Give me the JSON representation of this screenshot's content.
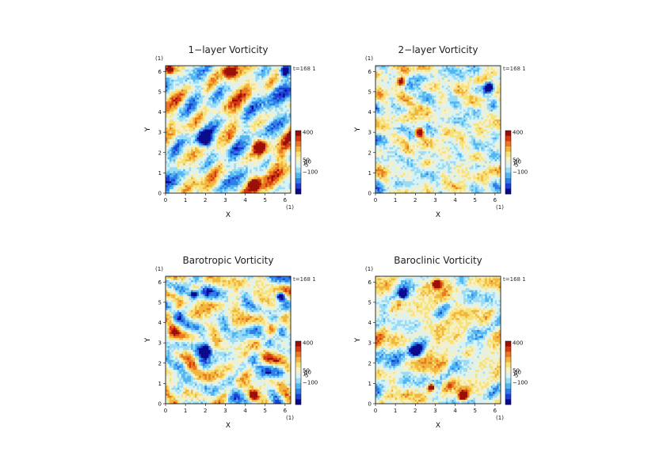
{
  "colors": {
    "palette": [
      "#0a0a8c",
      "#1e3fd6",
      "#2f7fe8",
      "#52b6f2",
      "#9adcf5",
      "#d8f2f6",
      "#f5f0c8",
      "#f7e27a",
      "#f2b63c",
      "#ea7a22",
      "#d63a12",
      "#9c0f08"
    ],
    "axis": "#000000"
  },
  "chart_data": [
    {
      "type": "heatmap",
      "title": "1−layer Vorticity",
      "xlabel": "X",
      "ylabel": "Y",
      "x_unit": "(1)",
      "y_unit": "(1)",
      "time_label": "t=168 1",
      "xlim": [
        0,
        6.283
      ],
      "ylim": [
        0,
        6.283
      ],
      "x_ticks": [
        0,
        1,
        2,
        3,
        4,
        5,
        6
      ],
      "y_ticks": [
        0,
        1,
        2,
        3,
        4,
        5,
        6
      ],
      "colorbar_labels": [
        "400",
        "50",
        "10",
        "1",
        "5",
        "−100"
      ],
      "seed": 11,
      "vortices": [
        {
          "x": 2.0,
          "y": 2.65,
          "r": 0.35,
          "sign": -1
        },
        {
          "x": 4.5,
          "y": 0.4,
          "r": 0.25,
          "sign": 1
        },
        {
          "x": 4.7,
          "y": 2.3,
          "r": 0.3,
          "sign": 1
        },
        {
          "x": 3.2,
          "y": 6.0,
          "r": 0.28,
          "sign": 1
        },
        {
          "x": 0.2,
          "y": 6.1,
          "r": 0.2,
          "sign": 1
        },
        {
          "x": 6.0,
          "y": 6.0,
          "r": 0.2,
          "sign": -1
        }
      ]
    },
    {
      "type": "heatmap",
      "title": "2−layer Vorticity",
      "xlabel": "X",
      "ylabel": "Y",
      "x_unit": "(1)",
      "y_unit": "(1)",
      "time_label": "t=168 1",
      "xlim": [
        0,
        6.283
      ],
      "ylim": [
        0,
        6.283
      ],
      "x_ticks": [
        0,
        1,
        2,
        3,
        4,
        5,
        6
      ],
      "y_ticks": [
        0,
        1,
        2,
        3,
        4,
        5,
        6
      ],
      "colorbar_labels": [
        "400",
        "50",
        "10",
        "1",
        "5",
        "−100"
      ],
      "seed": 23,
      "vortices": [
        {
          "x": 5.7,
          "y": 5.2,
          "r": 0.25,
          "sign": -1
        },
        {
          "x": 1.3,
          "y": 5.5,
          "r": 0.2,
          "sign": 1
        },
        {
          "x": 2.2,
          "y": 3.0,
          "r": 0.22,
          "sign": 1
        }
      ]
    },
    {
      "type": "heatmap",
      "title": "Barotropic Vorticity",
      "xlabel": "X",
      "ylabel": "Y",
      "x_unit": "(1)",
      "y_unit": "(1)",
      "time_label": "t=168 1",
      "xlim": [
        0,
        6.283
      ],
      "ylim": [
        0,
        6.283
      ],
      "x_ticks": [
        0,
        1,
        2,
        3,
        4,
        5,
        6
      ],
      "y_ticks": [
        0,
        1,
        2,
        3,
        4,
        5,
        6
      ],
      "colorbar_labels": [
        "400",
        "50",
        "10",
        "1",
        "5",
        "−100"
      ],
      "seed": 37,
      "vortices": [
        {
          "x": 2.0,
          "y": 2.6,
          "r": 0.3,
          "sign": -1
        },
        {
          "x": 1.4,
          "y": 5.4,
          "r": 0.22,
          "sign": -1
        },
        {
          "x": 4.4,
          "y": 0.4,
          "r": 0.2,
          "sign": 1
        },
        {
          "x": 5.8,
          "y": 5.3,
          "r": 0.18,
          "sign": -1
        }
      ]
    },
    {
      "type": "heatmap",
      "title": "Baroclinic Vorticity",
      "xlabel": "X",
      "ylabel": "Y",
      "x_unit": "(1)",
      "y_unit": "(1)",
      "time_label": "t=168 1",
      "xlim": [
        0,
        6.283
      ],
      "ylim": [
        0,
        6.283
      ],
      "x_ticks": [
        0,
        1,
        2,
        3,
        4,
        5,
        6
      ],
      "y_ticks": [
        0,
        1,
        2,
        3,
        4,
        5,
        6
      ],
      "colorbar_labels": [
        "400",
        "50",
        "10",
        "1",
        "5",
        "−100"
      ],
      "seed": 53,
      "vortices": [
        {
          "x": 2.0,
          "y": 2.6,
          "r": 0.3,
          "sign": -1
        },
        {
          "x": 1.4,
          "y": 5.4,
          "r": 0.22,
          "sign": -1
        },
        {
          "x": 4.4,
          "y": 0.4,
          "r": 0.24,
          "sign": 1
        },
        {
          "x": 3.1,
          "y": 5.9,
          "r": 0.2,
          "sign": 1
        },
        {
          "x": 2.8,
          "y": 0.8,
          "r": 0.18,
          "sign": 1
        }
      ]
    }
  ]
}
